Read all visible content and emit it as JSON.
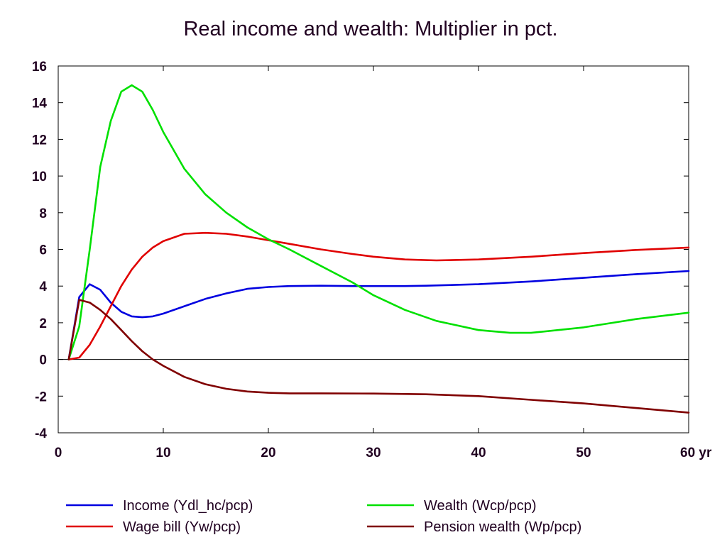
{
  "chart_data": {
    "type": "line",
    "title": "Real income and wealth: Multiplier in pct.",
    "xlabel": "",
    "ylabel": "",
    "xlim": [
      0,
      60
    ],
    "ylim": [
      -4,
      16
    ],
    "x_ticks": [
      {
        "value": 0,
        "label": "0"
      },
      {
        "value": 10,
        "label": "10"
      },
      {
        "value": 20,
        "label": "20"
      },
      {
        "value": 30,
        "label": "30"
      },
      {
        "value": 40,
        "label": "40"
      },
      {
        "value": 50,
        "label": "50"
      },
      {
        "value": 60,
        "label": "60 yr"
      }
    ],
    "y_ticks": [
      {
        "value": 16,
        "label": "16"
      },
      {
        "value": 14,
        "label": "14"
      },
      {
        "value": 12,
        "label": "12"
      },
      {
        "value": 10,
        "label": "10"
      },
      {
        "value": 8,
        "label": "8"
      },
      {
        "value": 6,
        "label": "6"
      },
      {
        "value": 4,
        "label": "4"
      },
      {
        "value": 2,
        "label": "2"
      },
      {
        "value": 0,
        "label": "0"
      },
      {
        "value": -2,
        "label": "-2"
      },
      {
        "value": -4,
        "label": "-4"
      }
    ],
    "zero_line": true,
    "grid": false,
    "legend_position": "bottom",
    "series": [
      {
        "name": "Income (Ydl_hc/pcp)",
        "color": "#0000e0",
        "points": [
          [
            1,
            0
          ],
          [
            2,
            3.4
          ],
          [
            3,
            4.1
          ],
          [
            4,
            3.8
          ],
          [
            5,
            3.1
          ],
          [
            6,
            2.6
          ],
          [
            7,
            2.35
          ],
          [
            8,
            2.3
          ],
          [
            9,
            2.35
          ],
          [
            10,
            2.5
          ],
          [
            12,
            2.9
          ],
          [
            14,
            3.3
          ],
          [
            16,
            3.6
          ],
          [
            18,
            3.85
          ],
          [
            20,
            3.95
          ],
          [
            22,
            4.0
          ],
          [
            25,
            4.02
          ],
          [
            28,
            4.0
          ],
          [
            30,
            4.0
          ],
          [
            33,
            4.0
          ],
          [
            35,
            4.02
          ],
          [
            40,
            4.1
          ],
          [
            45,
            4.25
          ],
          [
            50,
            4.45
          ],
          [
            55,
            4.65
          ],
          [
            60,
            4.82
          ]
        ]
      },
      {
        "name": "Wage bill (Yw/pcp)",
        "color": "#e00000",
        "points": [
          [
            1,
            0
          ],
          [
            2,
            0.1
          ],
          [
            3,
            0.8
          ],
          [
            4,
            1.8
          ],
          [
            5,
            2.9
          ],
          [
            6,
            4.0
          ],
          [
            7,
            4.9
          ],
          [
            8,
            5.6
          ],
          [
            9,
            6.1
          ],
          [
            10,
            6.45
          ],
          [
            12,
            6.85
          ],
          [
            14,
            6.9
          ],
          [
            16,
            6.85
          ],
          [
            18,
            6.7
          ],
          [
            20,
            6.5
          ],
          [
            22,
            6.3
          ],
          [
            25,
            6.0
          ],
          [
            28,
            5.75
          ],
          [
            30,
            5.6
          ],
          [
            33,
            5.45
          ],
          [
            36,
            5.4
          ],
          [
            40,
            5.45
          ],
          [
            45,
            5.6
          ],
          [
            50,
            5.8
          ],
          [
            55,
            5.97
          ],
          [
            60,
            6.1
          ]
        ]
      },
      {
        "name": "Wealth (Wcp/pcp)",
        "color": "#00e000",
        "points": [
          [
            1,
            0
          ],
          [
            2,
            1.8
          ],
          [
            3,
            6.0
          ],
          [
            4,
            10.5
          ],
          [
            5,
            13.0
          ],
          [
            6,
            14.6
          ],
          [
            7,
            14.95
          ],
          [
            8,
            14.6
          ],
          [
            9,
            13.6
          ],
          [
            10,
            12.4
          ],
          [
            12,
            10.4
          ],
          [
            14,
            9.0
          ],
          [
            16,
            8.0
          ],
          [
            18,
            7.2
          ],
          [
            20,
            6.55
          ],
          [
            22,
            6.0
          ],
          [
            25,
            5.1
          ],
          [
            28,
            4.2
          ],
          [
            30,
            3.5
          ],
          [
            33,
            2.7
          ],
          [
            36,
            2.1
          ],
          [
            40,
            1.6
          ],
          [
            43,
            1.45
          ],
          [
            45,
            1.45
          ],
          [
            50,
            1.75
          ],
          [
            55,
            2.2
          ],
          [
            60,
            2.55
          ]
        ]
      },
      {
        "name": "Pension wealth (Wp/pcp)",
        "color": "#800000",
        "points": [
          [
            1,
            0
          ],
          [
            2,
            3.25
          ],
          [
            3,
            3.1
          ],
          [
            4,
            2.7
          ],
          [
            5,
            2.2
          ],
          [
            6,
            1.6
          ],
          [
            7,
            1.0
          ],
          [
            8,
            0.45
          ],
          [
            9,
            0.0
          ],
          [
            10,
            -0.35
          ],
          [
            12,
            -0.95
          ],
          [
            14,
            -1.35
          ],
          [
            16,
            -1.6
          ],
          [
            18,
            -1.75
          ],
          [
            20,
            -1.82
          ],
          [
            22,
            -1.85
          ],
          [
            25,
            -1.85
          ],
          [
            30,
            -1.86
          ],
          [
            35,
            -1.9
          ],
          [
            40,
            -2.0
          ],
          [
            45,
            -2.2
          ],
          [
            50,
            -2.4
          ],
          [
            55,
            -2.65
          ],
          [
            60,
            -2.9
          ]
        ]
      }
    ]
  }
}
